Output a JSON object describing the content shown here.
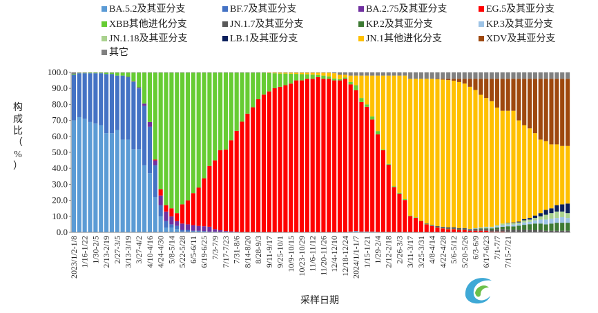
{
  "chart_data": {
    "type": "bar",
    "stacked": true,
    "percent_stacked": true,
    "xlabel": "采样日期",
    "ylabel": "构成比（%）",
    "ylim": [
      0,
      100
    ],
    "yticks": [
      "0.0",
      "10.0",
      "20.0",
      "30.0",
      "40.0",
      "50.0",
      "60.0",
      "70.0",
      "80.0",
      "90.0",
      "100.0"
    ],
    "legend_position": "top",
    "x_tick_labels": [
      "2023/1/2-1/8",
      "1/16-1/22",
      "1/30-2/5",
      "2/13-2/19",
      "2/27-3/5",
      "3/13-3/19",
      "3/27-4/2",
      "4/10-4/16",
      "4/24-4/30",
      "5/8-5/14",
      "5/22-5/28",
      "6/5-6/11",
      "6/19-6/25",
      "7/3-7/9",
      "7/17-7/23",
      "7/31-8/6",
      "8/14-8/20",
      "8/28-9/3",
      "9/11-9/17",
      "9/25-10/1",
      "10/9-10/15",
      "10/23-10/29",
      "11/6-11/12",
      "11/20-11/26",
      "12/4-12/10",
      "12/18-12/24",
      "2024/1/1-1/7",
      "1/15-1/21",
      "1/29-2/4",
      "2/12-2/18",
      "2/26-3/3",
      "3/11-3/17",
      "3/25-3/31",
      "4/8-4/14",
      "4/22-4/28",
      "5/6-5/12",
      "5/20-5/26",
      "6/3-6/9",
      "6/17-6/23",
      "7/1-7/7",
      "7/15-7/21"
    ],
    "series": [
      {
        "name": "BA.5.2及其亚分支",
        "color": "#5B9BD5"
      },
      {
        "name": "BF.7及其亚分支",
        "color": "#4472C4"
      },
      {
        "name": "BA.2.75及其亚分支",
        "color": "#7030A0"
      },
      {
        "name": "EG.5及其亚分支",
        "color": "#FF0000"
      },
      {
        "name": "XBB其他进化分支",
        "color": "#66CC33"
      },
      {
        "name": "JN.1.7及其亚分支",
        "color": "#595959"
      },
      {
        "name": "KP.2及其亚分支",
        "color": "#3D7A33"
      },
      {
        "name": "KP.3及其亚分支",
        "color": "#9DC3E6"
      },
      {
        "name": "JN.1.18及其亚分支",
        "color": "#A9D18E"
      },
      {
        "name": "LB.1及其亚分支",
        "color": "#0B1F5C"
      },
      {
        "name": "JN.1其他进化分支",
        "color": "#FFC000"
      },
      {
        "name": "XDV及其亚分支",
        "color": "#9E480E"
      },
      {
        "name": "其它",
        "color": "#808080"
      }
    ],
    "weekly_values": [
      [
        70.0,
        28.5,
        0,
        0,
        0.5,
        0,
        0,
        0,
        0,
        0,
        0,
        0,
        1.0
      ],
      [
        72.0,
        27.5,
        0,
        0,
        0.2,
        0,
        0,
        0,
        0,
        0,
        0,
        0,
        0.3
      ],
      [
        71.0,
        28.5,
        0,
        0,
        0.2,
        0,
        0,
        0,
        0,
        0,
        0,
        0,
        0.3
      ],
      [
        69.0,
        30.5,
        0,
        0,
        0.3,
        0,
        0,
        0,
        0,
        0,
        0,
        0,
        0.2
      ],
      [
        68.0,
        31.5,
        0,
        0,
        0.3,
        0,
        0,
        0,
        0,
        0,
        0,
        0,
        0.2
      ],
      [
        67.0,
        32.5,
        0,
        0,
        0.3,
        0,
        0,
        0,
        0,
        0,
        0,
        0,
        0.2
      ],
      [
        62.0,
        37.0,
        0,
        0,
        0.8,
        0,
        0,
        0,
        0,
        0,
        0,
        0,
        0.2
      ],
      [
        62.0,
        37.0,
        0,
        0,
        0.8,
        0,
        0,
        0,
        0,
        0,
        0,
        0,
        0.2
      ],
      [
        64.0,
        34.0,
        0,
        0,
        1.8,
        0,
        0,
        0,
        0,
        0,
        0,
        0,
        0.2
      ],
      [
        58.0,
        40.0,
        0,
        0,
        1.8,
        0,
        0,
        0,
        0,
        0,
        0,
        0,
        0.2
      ],
      [
        58.0,
        39.0,
        0.2,
        0,
        2.6,
        0,
        0,
        0,
        0,
        0,
        0,
        0,
        0.2
      ],
      [
        52.0,
        42.0,
        0.3,
        0,
        5.5,
        0,
        0,
        0,
        0,
        0,
        0,
        0,
        0.2
      ],
      [
        52.0,
        38.0,
        0.5,
        0,
        9.3,
        0,
        0,
        0,
        0,
        0,
        0,
        0,
        0.2
      ],
      [
        42.0,
        37.0,
        1.5,
        0,
        19.3,
        0,
        0,
        0,
        0,
        0,
        0,
        0,
        0.2
      ],
      [
        37.0,
        29.0,
        3.0,
        0,
        30.8,
        0,
        0,
        0,
        0,
        0,
        0,
        0,
        0.2
      ],
      [
        22.0,
        20.0,
        3.0,
        0.5,
        54.3,
        0,
        0,
        0,
        0,
        0,
        0,
        0,
        0.2
      ],
      [
        10.0,
        7.0,
        6.0,
        4.0,
        72.8,
        0,
        0,
        0,
        0,
        0,
        0,
        0,
        0.2
      ],
      [
        3.0,
        4.0,
        6.0,
        4.0,
        82.8,
        0,
        0,
        0,
        0,
        0,
        0,
        0,
        0.2
      ],
      [
        3.0,
        2.0,
        5.0,
        5.0,
        84.8,
        0,
        0,
        0,
        0,
        0,
        0,
        0,
        0.2
      ],
      [
        2.0,
        2.0,
        3.0,
        5.0,
        87.8,
        0,
        0,
        0,
        0,
        0,
        0,
        0,
        0.2
      ],
      [
        0.5,
        1.0,
        4.0,
        12.0,
        82.3,
        0,
        0,
        0,
        0,
        0,
        0,
        0,
        0.2
      ],
      [
        0.5,
        1.0,
        3.5,
        15.0,
        79.8,
        0,
        0,
        0,
        0,
        0,
        0,
        0,
        0.2
      ],
      [
        0.5,
        0.5,
        3.5,
        20.0,
        75.3,
        0,
        0,
        0,
        0,
        0,
        0,
        0,
        0.2
      ],
      [
        0.5,
        0.5,
        3.0,
        24.0,
        71.8,
        0,
        0,
        0,
        0,
        0,
        0,
        0,
        0.2
      ],
      [
        0.3,
        0.5,
        3.0,
        30.0,
        66.0,
        0,
        0,
        0,
        0,
        0,
        0,
        0,
        0.2
      ],
      [
        0.2,
        0.3,
        3.0,
        38.0,
        58.3,
        0,
        0,
        0,
        0,
        0,
        0,
        0,
        0.2
      ],
      [
        0.2,
        0.3,
        1.5,
        43.0,
        54.8,
        0,
        0,
        0,
        0,
        0,
        0,
        0,
        0.2
      ],
      [
        0.1,
        0.2,
        1.0,
        50.0,
        48.5,
        0,
        0,
        0,
        0,
        0,
        0,
        0,
        0.2
      ],
      [
        0.1,
        0.2,
        0.5,
        51.0,
        48.0,
        0,
        0,
        0,
        0,
        0,
        0,
        0,
        0.2
      ],
      [
        0,
        0.1,
        0.5,
        57.0,
        42.2,
        0,
        0,
        0,
        0,
        0,
        0,
        0,
        0.2
      ],
      [
        0,
        0.1,
        0.3,
        63.0,
        36.4,
        0,
        0,
        0,
        0,
        0,
        0,
        0,
        0.2
      ],
      [
        0,
        0,
        0.2,
        69.0,
        30.6,
        0,
        0,
        0,
        0,
        0,
        0,
        0,
        0.2
      ],
      [
        0,
        0,
        0.2,
        74.0,
        25.6,
        0,
        0,
        0,
        0,
        0,
        0,
        0,
        0.2
      ],
      [
        0,
        0,
        0.2,
        78.0,
        21.6,
        0,
        0,
        0,
        0,
        0,
        0,
        0,
        0.2
      ],
      [
        0,
        0,
        0.2,
        83.0,
        16.6,
        0,
        0,
        0,
        0,
        0,
        0,
        0,
        0.2
      ],
      [
        0,
        0,
        0.1,
        86.0,
        13.7,
        0,
        0,
        0,
        0,
        0,
        0,
        0,
        0.2
      ],
      [
        0,
        0,
        0.1,
        88.0,
        11.5,
        0,
        0,
        0,
        0,
        0,
        0.2,
        0,
        0.2
      ],
      [
        0,
        0,
        0.1,
        90.0,
        9.4,
        0,
        0,
        0,
        0,
        0,
        0.3,
        0,
        0.2
      ],
      [
        0,
        0,
        0,
        91.0,
        8.3,
        0,
        0,
        0,
        0,
        0,
        0.5,
        0,
        0.2
      ],
      [
        0,
        0,
        0,
        92.0,
        7.3,
        0,
        0,
        0,
        0,
        0,
        0.5,
        0,
        0.2
      ],
      [
        0,
        0,
        0,
        93.0,
        6.2,
        0,
        0,
        0,
        0,
        0,
        0.6,
        0,
        0.2
      ],
      [
        0,
        0,
        0,
        95.0,
        4.1,
        0,
        0,
        0,
        0,
        0,
        0.7,
        0,
        0.2
      ],
      [
        0,
        0,
        0,
        95.0,
        3.9,
        0,
        0,
        0,
        0,
        0,
        0.9,
        0,
        0.2
      ],
      [
        0,
        0,
        0,
        96.0,
        2.8,
        0,
        0,
        0,
        0,
        0,
        1.0,
        0,
        0.2
      ],
      [
        0,
        0,
        0,
        96.0,
        2.6,
        0,
        0,
        0,
        0,
        0,
        1.2,
        0,
        0.2
      ],
      [
        0,
        0,
        0,
        97.0,
        1.4,
        0,
        0,
        0,
        0,
        0,
        1.4,
        0,
        0.2
      ],
      [
        0,
        0,
        0,
        96.0,
        2.0,
        0,
        0,
        0,
        0,
        0,
        1.8,
        0,
        0.2
      ],
      [
        0,
        0,
        0,
        96.0,
        1.5,
        0,
        0,
        0,
        0,
        0,
        2.3,
        0,
        0.2
      ],
      [
        0,
        0,
        0,
        95.0,
        1.2,
        0,
        0,
        0,
        0,
        0,
        3.3,
        0,
        0.5
      ],
      [
        0,
        0,
        0,
        95.0,
        0.8,
        0,
        0,
        0,
        0,
        0,
        2.7,
        0,
        1.5
      ],
      [
        0,
        0,
        0,
        96.0,
        0.8,
        0,
        0,
        0,
        0,
        0,
        1.7,
        0,
        1.5
      ],
      [
        0.5,
        0,
        0,
        92.0,
        1.5,
        0,
        0,
        0,
        0,
        0,
        4.0,
        0,
        2.0
      ],
      [
        0.8,
        0,
        0,
        88.0,
        3.2,
        0,
        0,
        0,
        0,
        0,
        6.0,
        0,
        2.0
      ],
      [
        0.5,
        0,
        0,
        81.0,
        2.5,
        0,
        0,
        0,
        0,
        0,
        14.0,
        0,
        2.0
      ],
      [
        0.5,
        0,
        0,
        78.0,
        1.5,
        0,
        0,
        0,
        0,
        0,
        18.0,
        0,
        2.0
      ],
      [
        0.5,
        0,
        0,
        70.0,
        2.0,
        0,
        0,
        0,
        0,
        0,
        25.5,
        0,
        2.0
      ],
      [
        0.3,
        0,
        0,
        61.0,
        2.0,
        0,
        0,
        0,
        0,
        0,
        34.7,
        0,
        2.0
      ],
      [
        0.3,
        0,
        0,
        51.0,
        0.5,
        0,
        0,
        0,
        0,
        0,
        46.2,
        0,
        2.0
      ],
      [
        0.3,
        0,
        0,
        42.0,
        0.5,
        0,
        0,
        0,
        0,
        0,
        55.2,
        0,
        2.0
      ],
      [
        0.3,
        0,
        0,
        28.0,
        0.5,
        0,
        0,
        0,
        0,
        0,
        69.2,
        0,
        2.0
      ],
      [
        0.2,
        0,
        0,
        24.0,
        0.5,
        0,
        0,
        0,
        0,
        0,
        73.3,
        0,
        2.0
      ],
      [
        0.2,
        0,
        0,
        20.0,
        0.5,
        0,
        0,
        0,
        0,
        0,
        77.3,
        0,
        2.0
      ],
      [
        0.2,
        0,
        0,
        10.0,
        0.3,
        0,
        0,
        0,
        0,
        0,
        85.5,
        0,
        4.0
      ],
      [
        0.1,
        0,
        0,
        9.0,
        0.3,
        0,
        0,
        0,
        0,
        0,
        86.6,
        0,
        4.0
      ],
      [
        0.1,
        0,
        0,
        7.0,
        0.3,
        0,
        0,
        0,
        0,
        0,
        88.6,
        0,
        4.0
      ],
      [
        0,
        0,
        0,
        5.0,
        0.3,
        0.3,
        0,
        0,
        0,
        0,
        90.4,
        0,
        4.0
      ],
      [
        0,
        0,
        0,
        4.0,
        0.2,
        0.5,
        0,
        0,
        0,
        0,
        91.3,
        0,
        4.0
      ],
      [
        0,
        0,
        0,
        3.0,
        0.2,
        0.7,
        0,
        0,
        0,
        0,
        91.8,
        0.3,
        4.0
      ],
      [
        0,
        0,
        0,
        2.5,
        0.2,
        0.8,
        0,
        0,
        0,
        0,
        92.0,
        0.5,
        4.0
      ],
      [
        0,
        0,
        0,
        2.0,
        0.2,
        1.0,
        0,
        0,
        0,
        0,
        92.0,
        0.8,
        4.0
      ],
      [
        0,
        0,
        0,
        2.0,
        0.2,
        1.0,
        0,
        0,
        0,
        0,
        91.6,
        1.2,
        4.0
      ],
      [
        0,
        0,
        0,
        1.5,
        0.2,
        1.0,
        0,
        0,
        0,
        0,
        91.3,
        2.0,
        4.0
      ],
      [
        0,
        0,
        0,
        1.5,
        0.2,
        1.0,
        0,
        0,
        0,
        0,
        90.3,
        3.0,
        4.0
      ],
      [
        0,
        0,
        0,
        1.0,
        0,
        1.0,
        0,
        0.2,
        0,
        0,
        88.8,
        5.0,
        4.0
      ],
      [
        0,
        0,
        0,
        1.0,
        0,
        1.0,
        0.3,
        0.3,
        0,
        0,
        86.4,
        7.0,
        4.0
      ],
      [
        0,
        0,
        0,
        1.0,
        0,
        1.0,
        0.5,
        0.5,
        0,
        0,
        83.0,
        10.0,
        4.0
      ],
      [
        0,
        0,
        0,
        1.0,
        0,
        1.0,
        0.5,
        0.5,
        0.5,
        0,
        80.5,
        12.0,
        4.0
      ],
      [
        0,
        0,
        0,
        0.5,
        0,
        1.0,
        1.0,
        0.5,
        0.5,
        0,
        78.5,
        14.0,
        4.0
      ],
      [
        0,
        0,
        0,
        0.5,
        0,
        1.5,
        1.0,
        0.8,
        0.8,
        0,
        73.4,
        18.0,
        4.0
      ],
      [
        0,
        0,
        0,
        0.5,
        0,
        1.5,
        1.5,
        1.0,
        1.0,
        0,
        70.5,
        20.0,
        4.0
      ],
      [
        0,
        0,
        0,
        0.3,
        0,
        1.5,
        2.0,
        1.0,
        1.0,
        0.2,
        70.0,
        20.0,
        4.0
      ],
      [
        0,
        0,
        0,
        0.2,
        0,
        1.5,
        2.0,
        1.2,
        1.0,
        0.3,
        69.8,
        20.0,
        4.0
      ],
      [
        0,
        0,
        0,
        0.2,
        0,
        1.5,
        2.5,
        1.0,
        1.0,
        0.5,
        63.3,
        26.0,
        4.0
      ],
      [
        0,
        0,
        0,
        0.2,
        0,
        1.5,
        3.0,
        1.5,
        1.3,
        0.8,
        58.7,
        29.0,
        4.0
      ],
      [
        0,
        0,
        0,
        0.1,
        0,
        1.5,
        3.5,
        1.5,
        1.4,
        1.0,
        56.0,
        31.0,
        4.0
      ],
      [
        0,
        0,
        0,
        0,
        0,
        1.5,
        4.0,
        2.0,
        1.5,
        1.5,
        51.5,
        34.0,
        4.0
      ],
      [
        0,
        0,
        0,
        0,
        0,
        1.5,
        4.0,
        2.5,
        2.0,
        2.0,
        46.0,
        38.0,
        4.0
      ],
      [
        0,
        0,
        0,
        0,
        0,
        1.0,
        4.0,
        3.0,
        3.0,
        3.0,
        43.0,
        39.0,
        4.0
      ],
      [
        0,
        0,
        0,
        0,
        0,
        1.0,
        4.5,
        3.0,
        3.5,
        3.0,
        40.0,
        41.0,
        4.0
      ],
      [
        0,
        0,
        0,
        0,
        0,
        1.0,
        5.0,
        3.0,
        4.0,
        4.0,
        38.0,
        41.0,
        4.0
      ],
      [
        0,
        0,
        0,
        0,
        0,
        1.0,
        5.0,
        3.5,
        3.5,
        4.5,
        36.5,
        42.0,
        4.0
      ],
      [
        0,
        0,
        0,
        0,
        0,
        1.0,
        5.0,
        3.0,
        3.0,
        6.0,
        36.0,
        42.0,
        4.0
      ]
    ]
  }
}
